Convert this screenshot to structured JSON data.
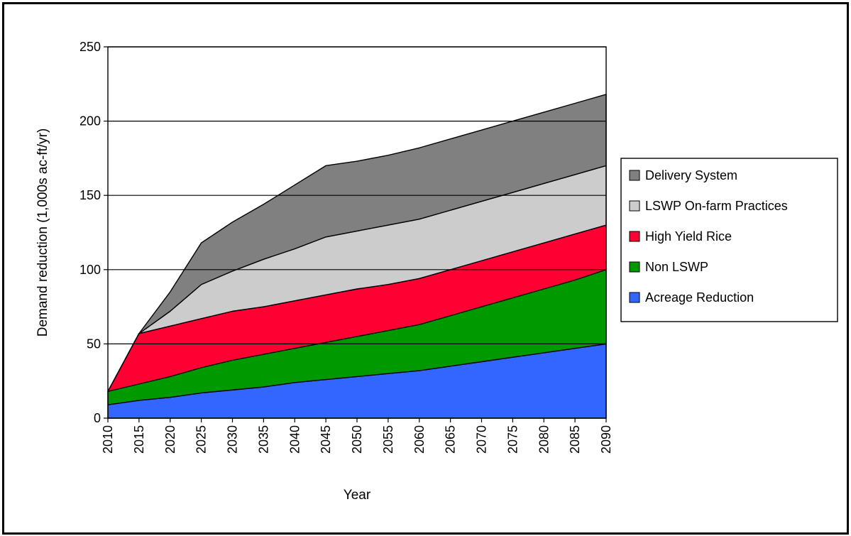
{
  "chart_data": {
    "type": "area",
    "stacked": true,
    "title": "",
    "xlabel": "Year",
    "ylabel": "Demand reduction (1,000s ac-ft/yr)",
    "ylim": [
      0,
      250
    ],
    "yticks": [
      0,
      50,
      100,
      150,
      200,
      250
    ],
    "x": [
      2010,
      2015,
      2020,
      2025,
      2030,
      2035,
      2040,
      2045,
      2050,
      2055,
      2060,
      2065,
      2070,
      2075,
      2080,
      2085,
      2090
    ],
    "grid": "horizontal major gridlines",
    "legend_position": "right",
    "series": [
      {
        "name": "Acreage Reduction",
        "color": "#3366FF",
        "values": [
          9,
          12,
          14,
          17,
          19,
          21,
          24,
          26,
          28,
          30,
          32,
          35,
          38,
          41,
          44,
          47,
          50
        ]
      },
      {
        "name": "Non LSWP",
        "color": "#009900",
        "values": [
          9,
          11,
          14,
          17,
          20,
          22,
          23,
          25,
          27,
          29,
          31,
          34,
          37,
          40,
          43,
          46,
          50
        ]
      },
      {
        "name": "High Yield Rice",
        "color": "#FF0033",
        "values": [
          0,
          34,
          34,
          33,
          33,
          32,
          32,
          32,
          32,
          31,
          31,
          31,
          31,
          31,
          31,
          31,
          30
        ]
      },
      {
        "name": "LSWP On-farm Practices",
        "color": "#CCCCCC",
        "values": [
          0,
          0,
          10,
          23,
          27,
          32,
          35,
          39,
          39,
          40,
          40,
          40,
          40,
          40,
          40,
          40,
          40
        ]
      },
      {
        "name": "Delivery System",
        "color": "#808080",
        "values": [
          0,
          0,
          13,
          28,
          33,
          37,
          43,
          48,
          47,
          47,
          48,
          48,
          48,
          48,
          48,
          48,
          48
        ]
      }
    ]
  }
}
